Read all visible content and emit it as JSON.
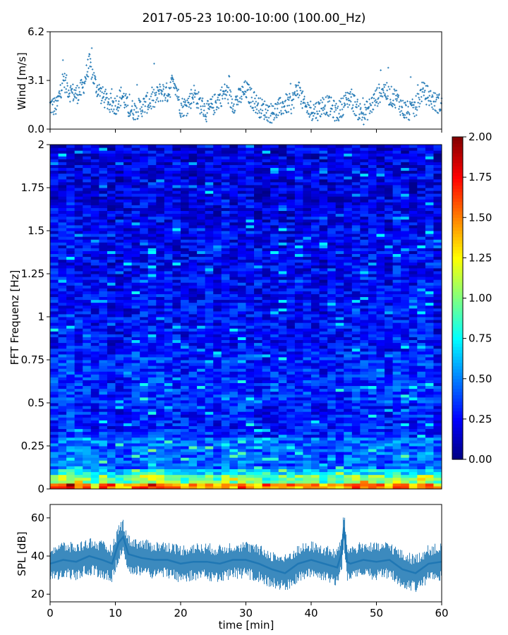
{
  "title": "2017-05-23 10:00-10:00 (100.00_Hz)",
  "chart_data": [
    {
      "type": "scatter",
      "ylabel": "Wind [m/s]",
      "xlabel": "",
      "xlim": [
        0,
        60
      ],
      "ylim": [
        0,
        6.2
      ],
      "yticks": [
        "0.0",
        "3.1",
        "6.2"
      ],
      "color": "#1f77b4",
      "marker": "+",
      "series": [
        {
          "x": [
            0,
            1,
            2,
            3,
            4,
            5,
            6,
            7,
            8,
            9,
            10,
            11,
            12,
            13,
            14,
            15,
            16,
            17,
            18,
            19,
            20,
            21,
            22,
            23,
            24,
            25,
            26,
            27,
            28,
            29,
            30,
            31,
            32,
            33,
            34,
            35,
            36,
            37,
            38,
            39,
            40,
            41,
            42,
            43,
            44,
            45,
            46,
            47,
            48,
            49,
            50,
            51,
            52,
            53,
            54,
            55,
            56,
            57,
            58,
            59,
            60
          ],
          "y": [
            1.5,
            1.4,
            3.2,
            2.4,
            2.2,
            2.6,
            4.2,
            2.8,
            2.1,
            1.7,
            1.5,
            2.2,
            1.3,
            1.2,
            1.4,
            1.7,
            1.9,
            2.4,
            2.3,
            3.2,
            1.4,
            1.5,
            2.3,
            1.6,
            1.1,
            1.5,
            2.0,
            2.4,
            1.6,
            2.0,
            2.5,
            1.9,
            1.4,
            1.2,
            1.0,
            1.3,
            1.6,
            1.6,
            2.7,
            1.4,
            1.2,
            1.2,
            1.6,
            1.4,
            1.0,
            1.6,
            2.1,
            1.3,
            0.9,
            1.4,
            2.0,
            2.6,
            2.1,
            2.0,
            1.3,
            1.1,
            1.4,
            2.4,
            2.1,
            1.7,
            1.6
          ]
        }
      ]
    },
    {
      "type": "heatmap",
      "ylabel": "FFT Frequenz [Hz]",
      "xlabel": "",
      "xlim": [
        0,
        60
      ],
      "ylim": [
        0,
        2
      ],
      "yticks": [
        "0",
        "0.25",
        "0.5",
        "0.75",
        "1",
        "1.25",
        "1.5",
        "1.75",
        "2"
      ],
      "colormap": "jet",
      "colorbar": {
        "range": [
          0,
          2
        ],
        "ticks": [
          "0.00",
          "0.25",
          "0.50",
          "0.75",
          "1.00",
          "1.25",
          "1.50",
          "1.75",
          "2.00"
        ]
      }
    },
    {
      "type": "line",
      "ylabel": "SPL [dB]",
      "xlabel": "time [min]",
      "xlim": [
        0,
        60
      ],
      "ylim": [
        16,
        67
      ],
      "xticks": [
        "0",
        "10",
        "20",
        "30",
        "40",
        "50",
        "60"
      ],
      "yticks": [
        "20",
        "40",
        "60"
      ],
      "color": "#1f77b4",
      "series": [
        {
          "x": [
            0,
            2,
            4,
            6,
            8,
            9.5,
            10.5,
            11.2,
            12,
            14,
            16,
            18,
            20,
            22,
            24,
            26,
            28,
            30,
            32,
            34,
            36,
            38,
            40,
            42,
            44,
            44.7,
            45,
            45.5,
            46,
            48,
            50,
            52,
            54,
            56,
            58,
            60
          ],
          "y": [
            36,
            38,
            37,
            40,
            38,
            36,
            47,
            50,
            41,
            39,
            38,
            38,
            36,
            37,
            37,
            36,
            38,
            38,
            36,
            33,
            31,
            36,
            38,
            36,
            34,
            42,
            55,
            37,
            36,
            38,
            37,
            38,
            33,
            31,
            36,
            37
          ]
        }
      ]
    }
  ]
}
